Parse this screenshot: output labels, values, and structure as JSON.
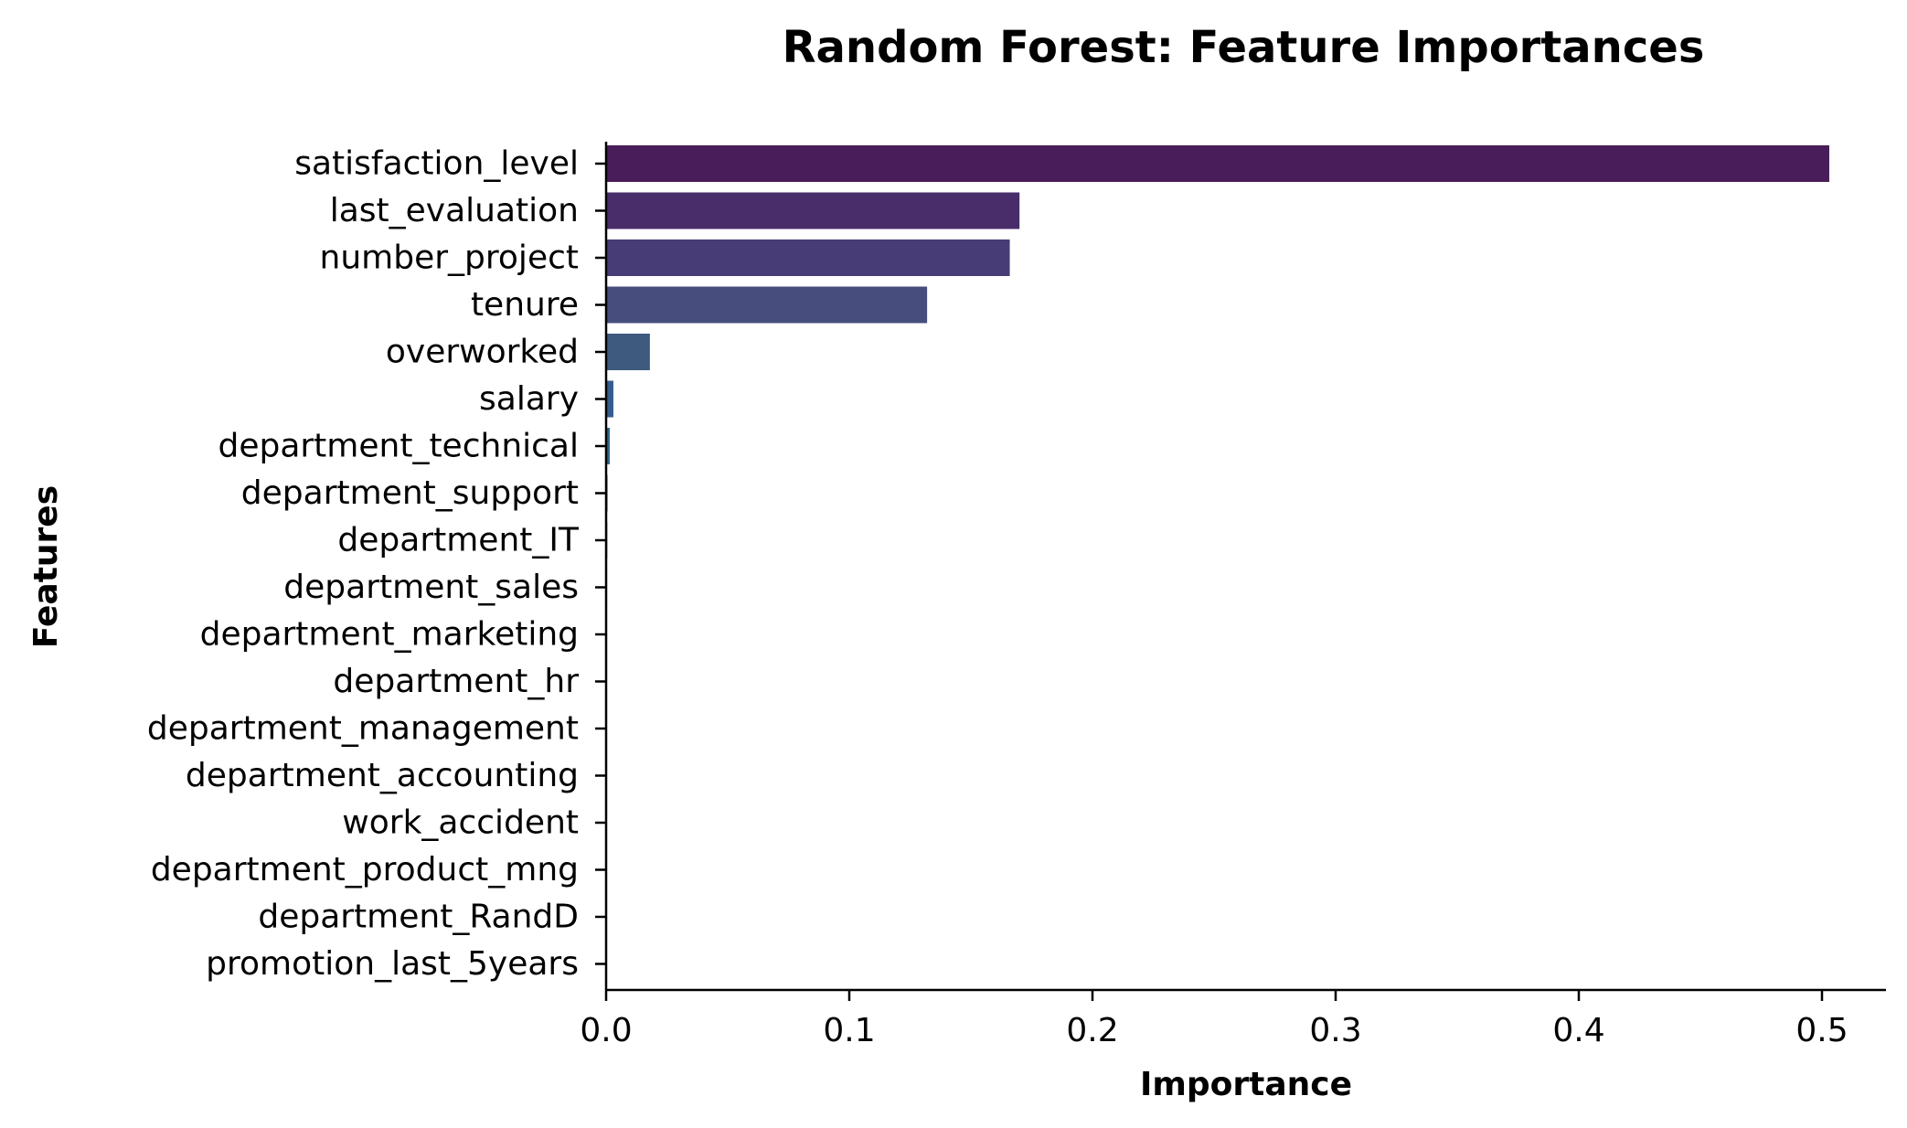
{
  "chart_data": {
    "type": "bar",
    "orientation": "horizontal",
    "title": "Random Forest: Feature Importances",
    "xlabel": "Importance",
    "ylabel": "Features",
    "xlim": [
      0,
      0.53
    ],
    "xticks": [
      "0.0",
      "0.1",
      "0.2",
      "0.3",
      "0.4",
      "0.5"
    ],
    "grid": false,
    "palette": "viridis",
    "categories": [
      "satisfaction_level",
      "last_evaluation",
      "number_project",
      "tenure",
      "overworked",
      "salary",
      "department_technical",
      "department_support",
      "department_IT",
      "department_sales",
      "department_marketing",
      "department_hr",
      "department_management",
      "department_accounting",
      "work_accident",
      "department_product_mng",
      "department_RandD",
      "promotion_last_5years"
    ],
    "values": [
      0.503,
      0.17,
      0.166,
      0.132,
      0.018,
      0.003,
      0.0015,
      0.0006,
      0.0005,
      0.0004,
      0.0003,
      0.0003,
      0.0002,
      0.0002,
      0.0002,
      0.0001,
      0.0001,
      0.0001
    ],
    "colors": [
      "#481d59",
      "#482d6a",
      "#483c76",
      "#474d7c",
      "#3e5a7f",
      "#365c8d",
      "#31688e",
      "#2c728e",
      "#277f8e",
      "#21918c",
      "#1fa187",
      "#2db27d",
      "#4ac16d",
      "#6ece58",
      "#95d840",
      "#bddf26",
      "#dfe318",
      "#fde725"
    ]
  }
}
